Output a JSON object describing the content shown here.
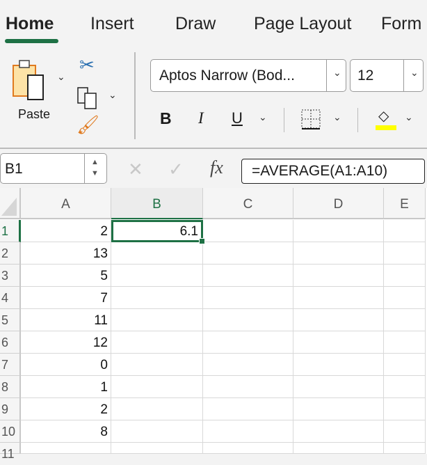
{
  "ribbon": {
    "tabs": [
      {
        "label": "Home",
        "active": true
      },
      {
        "label": "Insert"
      },
      {
        "label": "Draw"
      },
      {
        "label": "Page Layout"
      },
      {
        "label": "Form"
      }
    ],
    "paste_label": "Paste",
    "font_name": "Aptos Narrow (Bod...",
    "font_size": "12",
    "bold": "B",
    "italic": "I",
    "underline": "U",
    "fill_color": "#ffff00",
    "accent": "#1e7145"
  },
  "formula_bar": {
    "name_box": "B1",
    "fx": "fx",
    "formula": "=AVERAGE(A1:A10)"
  },
  "sheet": {
    "columns": [
      "A",
      "B",
      "C",
      "D",
      "E"
    ],
    "rows": [
      {
        "n": "1",
        "A": "2",
        "B": "6.1"
      },
      {
        "n": "2",
        "A": "13"
      },
      {
        "n": "3",
        "A": "5"
      },
      {
        "n": "4",
        "A": "7"
      },
      {
        "n": "5",
        "A": "11"
      },
      {
        "n": "6",
        "A": "12"
      },
      {
        "n": "7",
        "A": "0"
      },
      {
        "n": "8",
        "A": "1"
      },
      {
        "n": "9",
        "A": "2"
      },
      {
        "n": "10",
        "A": "8"
      },
      {
        "n": "11"
      }
    ],
    "selected_cell": "B1"
  }
}
